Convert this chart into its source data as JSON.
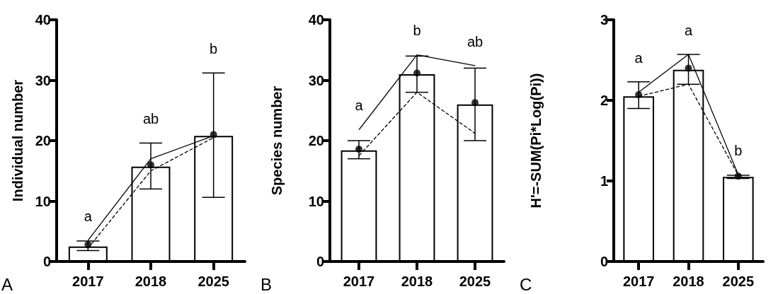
{
  "chart_data": [
    {
      "type": "bar",
      "ylabel": "Individual number",
      "categories": [
        "2017",
        "2018",
        "2025"
      ],
      "ylim": [
        0,
        40
      ],
      "yticks": [
        0,
        10,
        20,
        30,
        40
      ],
      "series": [
        {
          "color": "#ffffff",
          "values": [
            2.5,
            15.7,
            20.8
          ],
          "errors": [
            [
              1.8,
              3.4
            ],
            [
              12,
              19.6
            ],
            [
              10.6,
              31.2
            ]
          ]
        },
        {
          "type": "line",
          "color": "#000000",
          "line_style": "solid",
          "marker": "none",
          "values": [
            3.5,
            17,
            20.8
          ]
        },
        {
          "type": "line",
          "color": "#000000",
          "line_style": "dashed",
          "marker": "none",
          "values": [
            2.2,
            15,
            20.5
          ]
        },
        {
          "type": "scatter",
          "color": "#000000",
          "marker": "circle",
          "values": [
            2.8,
            16,
            21
          ]
        }
      ],
      "annotations": [
        "a",
        "ab",
        "b",
        "A"
      ]
    },
    {
      "type": "bar",
      "ylabel": "Species number",
      "categories": [
        "2017",
        "2018",
        "2025"
      ],
      "ylim": [
        0,
        40
      ],
      "yticks": [
        0,
        10,
        20,
        30,
        40
      ],
      "series": [
        {
          "color": "#ffffff",
          "values": [
            18.4,
            31,
            26
          ],
          "errors": [
            [
              17,
              20
            ],
            [
              28,
              34
            ],
            [
              20,
              32
            ]
          ]
        },
        {
          "type": "line",
          "color": "#000000",
          "line_style": "solid",
          "marker": "none",
          "values": [
            21.8,
            34.2,
            32.4
          ]
        },
        {
          "type": "line",
          "color": "#000000",
          "line_style": "dashed",
          "marker": "none",
          "values": [
            17.5,
            28,
            21.2
          ]
        },
        {
          "type": "scatter",
          "color": "#000000",
          "marker": "circle",
          "values": [
            18.6,
            31.2,
            26.3
          ]
        }
      ],
      "annotations": [
        "a",
        "b",
        "ab",
        "B"
      ]
    },
    {
      "type": "bar",
      "ylabel": "H'=-SUM(Pi*Log(Pi))",
      "categories": [
        "2017",
        "2018",
        "2025"
      ],
      "ylim": [
        0,
        3
      ],
      "yticks": [
        0,
        1,
        2,
        3
      ],
      "series": [
        {
          "color": "#ffffff",
          "values": [
            2.05,
            2.38,
            1.05
          ],
          "errors": [
            [
              1.9,
              2.23
            ],
            [
              2.2,
              2.57
            ],
            [
              1.03,
              1.07
            ]
          ]
        },
        {
          "type": "line",
          "color": "#000000",
          "line_style": "solid",
          "marker": "none",
          "values": [
            2.1,
            2.57,
            1.08
          ]
        },
        {
          "type": "line",
          "color": "#000000",
          "line_style": "dashed",
          "marker": "none",
          "values": [
            2.05,
            2.2,
            1.07
          ]
        },
        {
          "type": "scatter",
          "color": "#000000",
          "marker": "circle",
          "values": [
            2.07,
            2.4,
            1.06
          ]
        }
      ],
      "annotations": [
        "a",
        "a",
        "b",
        "C"
      ]
    }
  ]
}
